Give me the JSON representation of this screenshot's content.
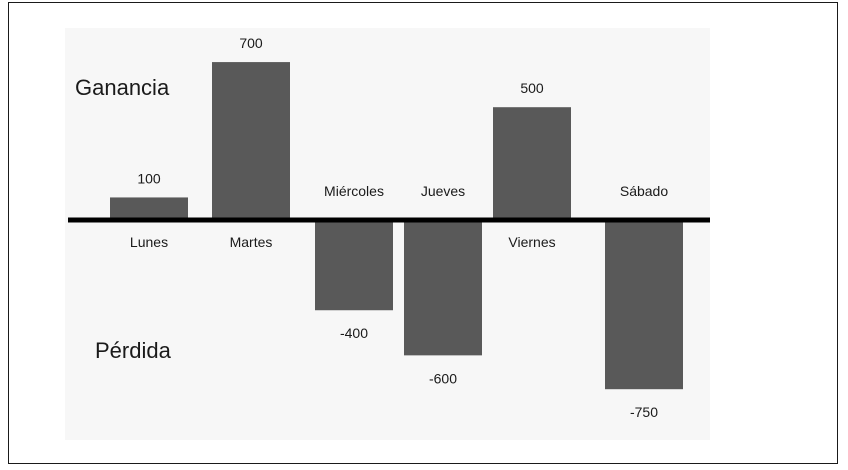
{
  "chart_data": {
    "type": "bar",
    "categories": [
      "Lunes",
      "Martes",
      "Miércoles",
      "Jueves",
      "Viernes",
      "Sábado"
    ],
    "values": [
      100,
      700,
      -400,
      -600,
      500,
      -750
    ],
    "value_labels": [
      "100",
      "700",
      "-400",
      "-600",
      "500",
      "-750"
    ],
    "gain_label": "Ganancia",
    "loss_label": "Pérdida",
    "ylim": [
      -750,
      700
    ],
    "grid": false,
    "bar_color": "#595959",
    "baseline_color": "#000000"
  }
}
